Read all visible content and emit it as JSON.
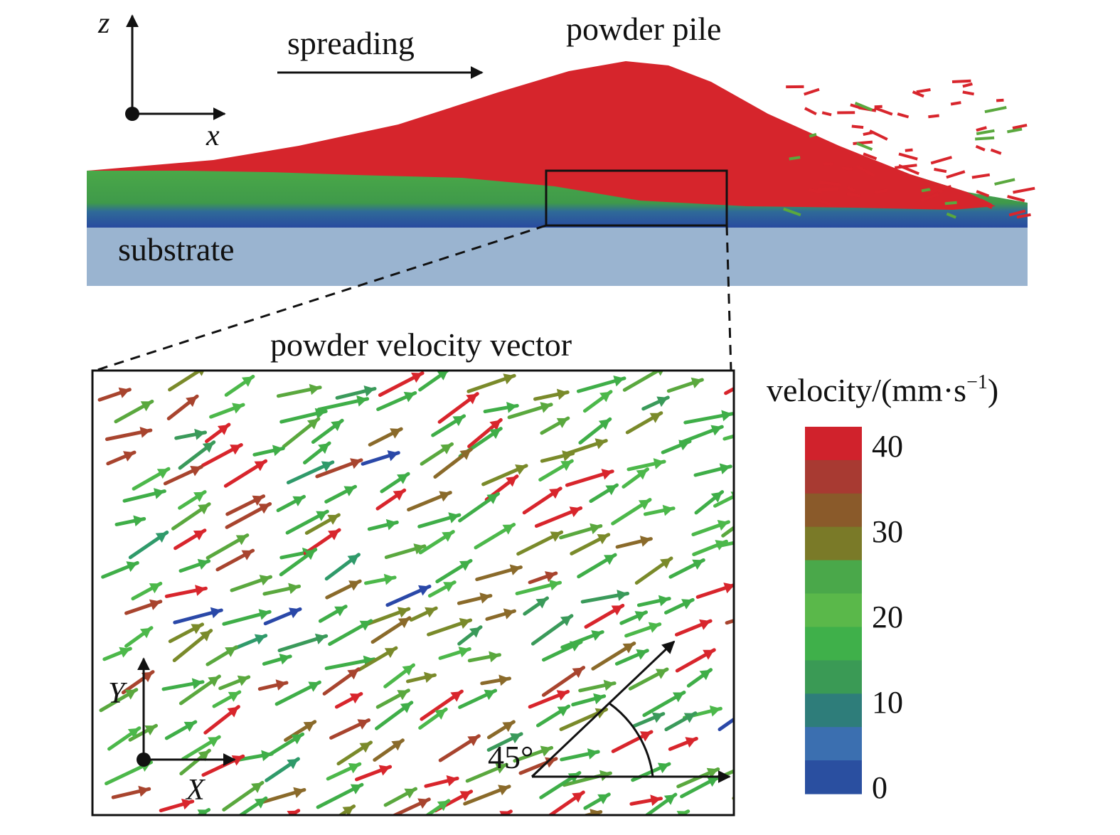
{
  "labels": {
    "top_axis_z": "z",
    "top_axis_x": "x",
    "spreading": "spreading",
    "powder_pile": "powder pile",
    "substrate": "substrate",
    "inset_title": "powder velocity vector",
    "inset_axis_y": "Y",
    "inset_axis_x": "X",
    "angle": "45°"
  },
  "colorbar": {
    "title": "velocity/(mm·s",
    "title_sup": "−1",
    "title_close": ")",
    "ticks": [
      "40",
      "30",
      "20",
      "10",
      "0"
    ],
    "range": [
      0,
      40
    ],
    "colors": [
      "#2a4fa0",
      "#3b6fb0",
      "#2e7d7a",
      "#3a9a55",
      "#3fb04a",
      "#5ab84a",
      "#4aa84a",
      "#7a7a28",
      "#8a5a2a",
      "#a83a32",
      "#d0222c"
    ]
  }
}
